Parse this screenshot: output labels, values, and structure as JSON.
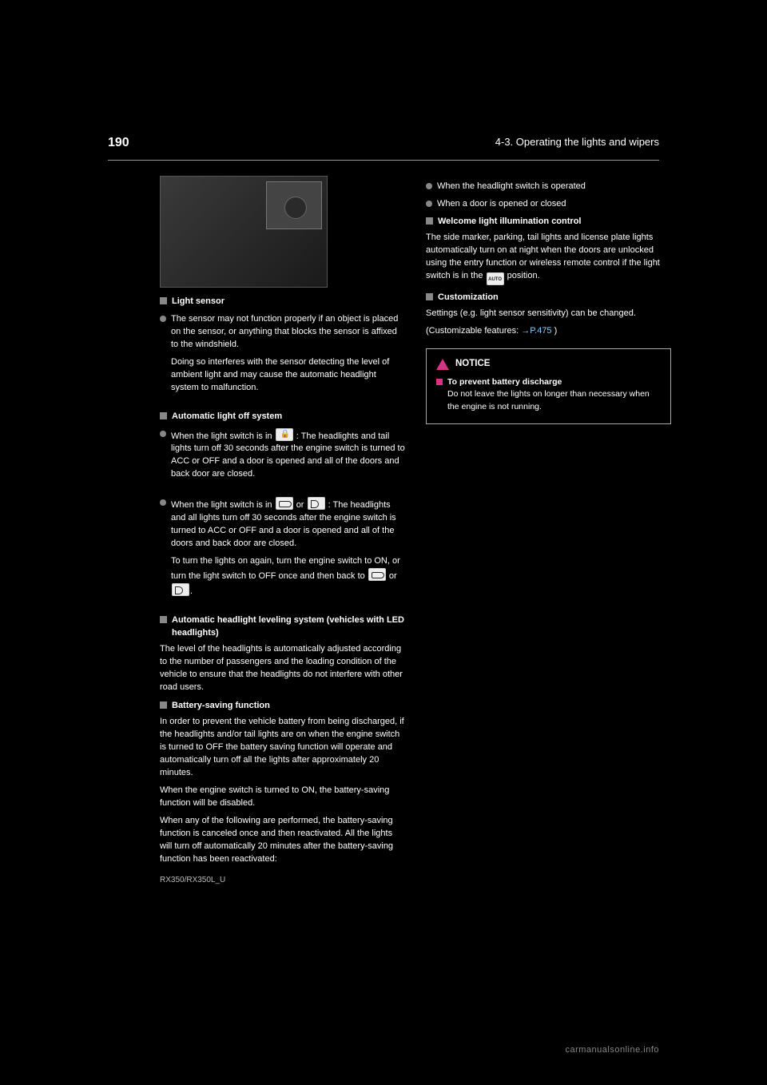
{
  "page_number": "190",
  "header": "4-3. Operating the lights and wipers",
  "model_line": "RX350/RX350L_U",
  "left": {
    "s1_title": "Light sensor",
    "b1": "The sensor may not function properly if an object is placed on the sensor, or anything that blocks the sensor is affixed to the windshield.",
    "b2": "Doing so interferes with the sensor detecting the level of ambient light and may cause the automatic headlight system to malfunction.",
    "s2_title": "Automatic light off system",
    "li1a": "When the light switch is in",
    "li1b": ": The headlights and tail lights turn off 30 seconds after the engine switch is turned to ACC or OFF and a door is opened and all of the doors and back door are closed.",
    "li2a": "When the light switch is in",
    "li2b": "or",
    "li2c": ": The headlights and all lights turn off 30 seconds after the engine switch is turned to ACC or OFF and a door is opened and all of the doors and back door are closed.",
    "after": "To turn the lights on again, turn the engine switch to ON, or turn the light switch to OFF once and then back to",
    "after2": "or",
    "s3_title": "Automatic headlight leveling system (vehicles with LED headlights)",
    "s3_body": "The level of the headlights is automatically adjusted according to the number of passengers and the loading condition of the vehicle to ensure that the headlights do not interfere with other road users.",
    "s4_title": "Battery-saving function",
    "s4_body": "In order to prevent the vehicle battery from being discharged, if the headlights and/or tail lights are on when the engine switch is turned to OFF the battery saving function will operate and automatically turn off all the lights after approximately 20 minutes.",
    "s4_body2a": "When the engine switch is turned to ON, the battery-saving function will be disabled.",
    "s4_body2b": "When any of the following are performed, the battery-saving function is canceled once and then reactivated. All the lights will turn off automatically 20 minutes after the battery-saving function has been reactivated:"
  },
  "right": {
    "li1": "When the headlight switch is operated",
    "li2": "When a door is opened or closed",
    "s1_title": "Welcome light illumination control",
    "s1_body": "The side marker, parking, tail lights and license plate lights automatically turn on at night when the doors are unlocked using the entry function or wireless remote control if the light switch is in the",
    "s1_body2": "position.",
    "s2_title": "Customization",
    "s2_body": "Settings (e.g. light sensor sensitivity) can be changed.",
    "s2_body2": "(Customizable features: ",
    "s2_ref": "→P.475",
    "s2_body3": ")",
    "notice_label": "NOTICE",
    "notice_title": "To prevent battery discharge",
    "notice_body": "Do not leave the lights on longer than necessary when the engine is not running."
  },
  "watermark": "carmanualsonline.info"
}
